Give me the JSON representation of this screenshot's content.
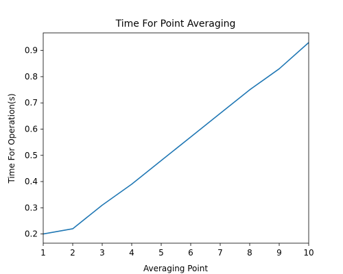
{
  "chart_data": {
    "type": "line",
    "title": "Time For Point Averaging",
    "xlabel": "Averaging Point",
    "ylabel": "Time For Operation(s)",
    "xlim": [
      1,
      10
    ],
    "ylim": [
      0.165,
      0.967
    ],
    "xticks": [
      1,
      2,
      3,
      4,
      5,
      6,
      7,
      8,
      9,
      10
    ],
    "yticks": [
      0.2,
      0.3,
      0.4,
      0.5,
      0.6,
      0.7,
      0.8,
      0.9
    ],
    "grid": false,
    "legend": "none",
    "series": [
      {
        "color": "#1f77b4",
        "x": [
          1,
          2,
          3,
          4,
          5,
          6,
          7,
          8,
          9,
          10
        ],
        "y": [
          0.2,
          0.22,
          0.31,
          0.39,
          0.48,
          0.57,
          0.66,
          0.75,
          0.83,
          0.93
        ]
      }
    ]
  }
}
